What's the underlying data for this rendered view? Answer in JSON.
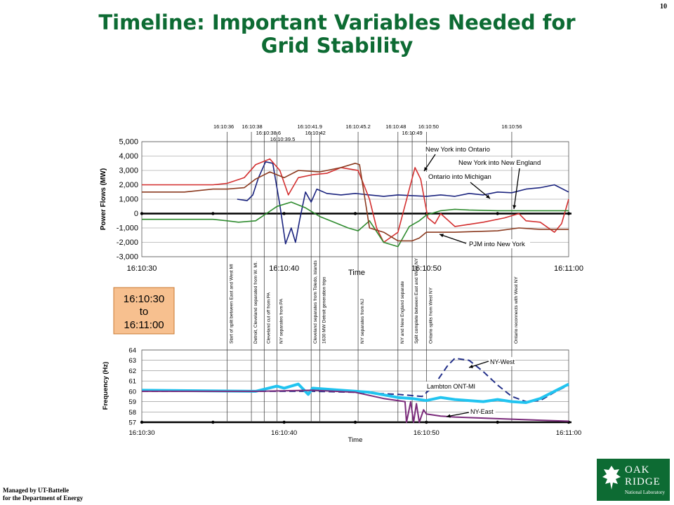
{
  "slide": {
    "number": "10",
    "title_line1": "Timeline: Important Variables Needed for",
    "title_line2": "Grid Stability",
    "footer_line1": "Managed by UT-Battelle",
    "footer_line2": "for the Department of Energy",
    "logo_word_line1": "OAK",
    "logo_word_line2": "RIDGE",
    "logo_sub": "National Laboratory"
  },
  "time_box": {
    "line1": "16:10:30",
    "line2": "to",
    "line3": "16:11:00"
  },
  "colors": {
    "ny_into_ontario": "#1a237e",
    "ny_into_new_england": "#d32f2f",
    "ontario_into_michigan": "#2e8b2e",
    "pjm_into_new_york": "#8b3a1f",
    "ny_west": "#24318a",
    "lambton": "#21c4f0",
    "ny_east": "#7a2a7a",
    "title": "#0d6b33",
    "time_box": "#f7c08f"
  },
  "event_lines": {
    "tick_labels": [
      "16:10:36",
      "16:10:38",
      "16:10:38.6",
      "16:10:39.5",
      "16:10:41.9",
      "16:10:42",
      "16:10:45.2",
      "16:10:48",
      "16:10:49",
      "16:10:50",
      "16:10:56"
    ],
    "tick_seconds": [
      6,
      8,
      8.6,
      9.5,
      11.9,
      12,
      15.2,
      18,
      19,
      20,
      26
    ],
    "descriptions": [
      "Start of split between East and West MI",
      "Detroit, Cleveland separated from W. MI.",
      "Cleveland cut off from PA",
      "NY separates from PA",
      "Cleveland separates from Toledo, islands",
      "1630 MW Detroit generation trips",
      "NY separates from NJ",
      "NY and New England separate",
      "Split complete between East and West NY",
      "Ontario splits from West NY",
      "Ontario reconnects with West NY"
    ],
    "description_seconds": [
      6,
      7.7,
      8.6,
      9.5,
      11.9,
      12.5,
      15.2,
      18,
      19,
      20,
      26
    ]
  },
  "chart_data": [
    {
      "type": "line",
      "xlabel": "Time",
      "ylabel": "Power Flows (MW)",
      "x_ticks": [
        "16:10:30",
        "16:10:40",
        "16:10:50",
        "16:11:00"
      ],
      "xlim": [
        0,
        30
      ],
      "ylim": [
        -3000,
        5000
      ],
      "y_ticks": [
        "5,000",
        "4,000",
        "3,000",
        "2,000",
        "1,000",
        "0",
        "-1,000",
        "-2,000",
        "-3,000"
      ],
      "y_tick_values": [
        5000,
        4000,
        3000,
        2000,
        1000,
        0,
        -1000,
        -2000,
        -3000
      ],
      "grid": true,
      "series": [
        {
          "name": "New York into Ontario",
          "x": [
            6.7,
            7.4,
            7.8,
            8.2,
            8.7,
            9.2,
            9.7,
            10.1,
            10.5,
            10.8,
            11.1,
            11.5,
            11.9,
            12.3,
            13,
            14,
            15,
            16,
            17,
            18,
            19,
            20,
            21,
            22,
            23,
            24,
            25,
            26,
            27,
            28,
            29,
            30
          ],
          "y": [
            1000,
            900,
            1300,
            2500,
            3600,
            3500,
            600,
            -2100,
            -1000,
            -2000,
            -400,
            1500,
            800,
            1700,
            1400,
            1300,
            1400,
            1300,
            1200,
            1300,
            1250,
            1200,
            1300,
            1200,
            1400,
            1300,
            1500,
            1450,
            1700,
            1800,
            2000,
            1500
          ]
        },
        {
          "name": "New York into New England",
          "x": [
            0,
            3,
            5,
            6,
            7.2,
            8,
            9,
            9.7,
            10.3,
            11,
            12,
            13,
            14,
            15.2,
            16,
            16.5,
            17,
            18,
            19.2,
            19.6,
            20.1,
            20.6,
            21,
            22,
            24,
            25.5,
            26.5,
            27,
            28,
            29,
            29.5,
            30
          ],
          "y": [
            2000,
            2000,
            2000,
            2100,
            2500,
            3400,
            3800,
            3000,
            1300,
            2500,
            2700,
            2800,
            3200,
            3000,
            1000,
            -1000,
            -2000,
            -1300,
            3200,
            2400,
            -300,
            -700,
            0,
            -900,
            -600,
            -300,
            0,
            -500,
            -600,
            -1300,
            -700,
            1000
          ]
        },
        {
          "name": "Ontario into Michigan",
          "x": [
            0,
            3,
            5,
            6,
            6.8,
            8,
            9.5,
            10.5,
            11.5,
            12.5,
            13.5,
            14.5,
            15.2,
            16,
            17,
            18,
            18.8,
            19.5,
            20,
            21,
            22,
            23,
            25,
            27,
            30
          ],
          "y": [
            -400,
            -400,
            -400,
            -500,
            -600,
            -500,
            500,
            800,
            400,
            -200,
            -600,
            -1000,
            -1200,
            -500,
            -2000,
            -2300,
            -900,
            -500,
            -100,
            200,
            300,
            250,
            200,
            200,
            200
          ]
        },
        {
          "name": "PJM into New York",
          "x": [
            0,
            3,
            5,
            6,
            7.2,
            8,
            9,
            10,
            11,
            12.5,
            14,
            15,
            15.3,
            16,
            17,
            18,
            19,
            19.5,
            20,
            22,
            25,
            26.5,
            28,
            30
          ],
          "y": [
            1500,
            1500,
            1700,
            1700,
            1800,
            2400,
            2900,
            2500,
            3000,
            2900,
            3200,
            3500,
            3400,
            -1000,
            -1300,
            -1900,
            -1900,
            -1700,
            -1300,
            -1300,
            -1200,
            -1000,
            -1100,
            -1100
          ]
        }
      ],
      "annotations": [
        "New York into Ontario",
        "New York into New England",
        "Ontario into Michigan",
        "PJM into New York"
      ]
    },
    {
      "type": "line",
      "xlabel": "Time",
      "ylabel": "Frequency (Hz)",
      "x_ticks": [
        "16:10:30",
        "16:10:40",
        "16:10:50",
        "16:11:00"
      ],
      "xlim": [
        0,
        30
      ],
      "ylim": [
        57,
        64
      ],
      "y_ticks": [
        "64",
        "63",
        "62",
        "61",
        "60",
        "59",
        "58",
        "57"
      ],
      "y_tick_values": [
        64,
        63,
        62,
        61,
        60,
        59,
        58,
        57
      ],
      "grid": true,
      "series": [
        {
          "name": "NY-West",
          "x": [
            0,
            8,
            12,
            15,
            18,
            19.7,
            20.5,
            21.5,
            22,
            23,
            24,
            25,
            26,
            27,
            28,
            29,
            30
          ],
          "y": [
            60,
            60,
            60,
            59.9,
            59.7,
            59.5,
            60.5,
            62.5,
            63.2,
            63,
            61.9,
            60.6,
            59.5,
            59,
            59.1,
            59.9,
            60.6
          ]
        },
        {
          "name": "Lambton ONT-MI",
          "x": [
            0,
            8,
            9.5,
            10,
            11,
            11.7,
            12,
            14,
            16,
            18,
            19,
            20,
            21,
            22,
            23,
            24,
            25,
            26,
            27,
            28,
            29,
            30
          ],
          "y": [
            60.1,
            60,
            60.5,
            60.3,
            60.7,
            59.7,
            60.3,
            60.1,
            59.9,
            59.4,
            59.3,
            59.1,
            59.4,
            59.2,
            59.1,
            59.0,
            59.2,
            59.0,
            58.9,
            59.3,
            60.0,
            60.7
          ]
        },
        {
          "name": "NY-East",
          "x": [
            0,
            8,
            12,
            15,
            17,
            18.5,
            18.6,
            18.9,
            19.1,
            19.3,
            19.5,
            19.8,
            20,
            21,
            22,
            24,
            26,
            28,
            30
          ],
          "y": [
            60,
            60,
            60.1,
            59.9,
            59.3,
            59,
            57,
            59,
            57,
            58.8,
            57,
            58.2,
            57.8,
            57.6,
            57.5,
            57.4,
            57.3,
            57.2,
            57.1
          ]
        }
      ],
      "annotations": [
        "NY-West",
        "Lambton ONT-MI",
        "NY-East"
      ]
    }
  ]
}
